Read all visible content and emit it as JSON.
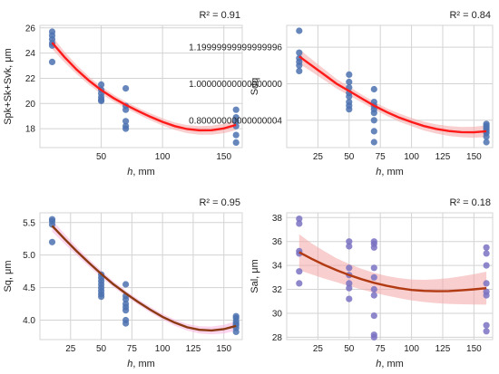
{
  "figure": {
    "background": "#ffffff"
  },
  "chart_data": [
    {
      "type": "scatter",
      "id": "spk",
      "xlabel": "h, mm",
      "ylabel": "Spk+Sk+Svk, μm",
      "annotation": "R² = 0.91",
      "xlim": [
        0,
        165
      ],
      "ylim": [
        16.5,
        26.2
      ],
      "xticks": [
        50,
        100,
        150
      ],
      "yticks": [
        18,
        20,
        22,
        24,
        26
      ],
      "grid": true,
      "point_color": "#4c72b0",
      "line_color": "#ff1a1a",
      "band_color": "#f4a6a6",
      "points": [
        [
          10,
          25.7
        ],
        [
          10,
          25.4
        ],
        [
          10,
          25.1
        ],
        [
          10,
          24.8
        ],
        [
          10,
          24.6
        ],
        [
          10,
          23.3
        ],
        [
          50,
          21.5
        ],
        [
          50,
          21.1
        ],
        [
          50,
          20.8
        ],
        [
          50,
          20.5
        ],
        [
          50,
          20.3
        ],
        [
          50,
          20.2
        ],
        [
          70,
          21.2
        ],
        [
          70,
          19.8
        ],
        [
          70,
          19.5
        ],
        [
          70,
          18.6
        ],
        [
          70,
          18.2
        ],
        [
          70,
          18.0
        ],
        [
          160,
          19.5
        ],
        [
          160,
          18.9
        ],
        [
          160,
          18.6
        ],
        [
          160,
          18.2
        ],
        [
          160,
          17.5
        ],
        [
          160,
          16.9
        ]
      ],
      "fit": [
        [
          10,
          24.83
        ],
        [
          20,
          23.69
        ],
        [
          30,
          22.69
        ],
        [
          40,
          21.81
        ],
        [
          50,
          21.06
        ],
        [
          60,
          20.43
        ],
        [
          70,
          19.89
        ],
        [
          80,
          19.4
        ],
        [
          90,
          18.95
        ],
        [
          100,
          18.54
        ],
        [
          110,
          18.2
        ],
        [
          120,
          17.97
        ],
        [
          130,
          17.87
        ],
        [
          140,
          17.88
        ],
        [
          150,
          18.02
        ],
        [
          160,
          18.3
        ]
      ],
      "band_halfwidth": [
        0.5,
        0.42,
        0.36,
        0.32,
        0.29,
        0.27,
        0.26,
        0.26,
        0.27,
        0.29,
        0.3,
        0.32,
        0.34,
        0.36,
        0.38,
        0.41
      ]
    },
    {
      "type": "scatter",
      "id": "sdq",
      "xlabel": "h, mm",
      "ylabel": "Sdq",
      "annotation": "R² = 0.84",
      "xlim": [
        0,
        165
      ],
      "ylim": [
        0.65,
        1.32
      ],
      "xticks": [
        25,
        50,
        75,
        100,
        125,
        150
      ],
      "yticks": [
        0.8,
        1.0,
        1.2
      ],
      "grid": true,
      "point_color": "#4c72b0",
      "line_color": "#ff1a1a",
      "band_color": "#f4a6a6",
      "points": [
        [
          10,
          1.29
        ],
        [
          10,
          1.17
        ],
        [
          10,
          1.14
        ],
        [
          10,
          1.12
        ],
        [
          10,
          1.1
        ],
        [
          10,
          1.07
        ],
        [
          50,
          1.05
        ],
        [
          50,
          1.01
        ],
        [
          50,
          0.98
        ],
        [
          50,
          0.95
        ],
        [
          50,
          0.93
        ],
        [
          50,
          0.9
        ],
        [
          50,
          0.88
        ],
        [
          50,
          0.86
        ],
        [
          70,
          0.97
        ],
        [
          70,
          0.9
        ],
        [
          70,
          0.88
        ],
        [
          70,
          0.86
        ],
        [
          70,
          0.84
        ],
        [
          70,
          0.8
        ],
        [
          70,
          0.74
        ],
        [
          70,
          0.68
        ],
        [
          160,
          0.78
        ],
        [
          160,
          0.77
        ],
        [
          160,
          0.76
        ],
        [
          160,
          0.75
        ],
        [
          160,
          0.74
        ],
        [
          160,
          0.73
        ],
        [
          160,
          0.71
        ],
        [
          160,
          0.68
        ]
      ],
      "fit": [
        [
          10,
          1.15
        ],
        [
          20,
          1.1
        ],
        [
          30,
          1.05
        ],
        [
          40,
          1.0
        ],
        [
          50,
          0.96
        ],
        [
          60,
          0.92
        ],
        [
          70,
          0.88
        ],
        [
          80,
          0.845
        ],
        [
          90,
          0.815
        ],
        [
          100,
          0.79
        ],
        [
          110,
          0.768
        ],
        [
          120,
          0.752
        ],
        [
          130,
          0.741
        ],
        [
          140,
          0.735
        ],
        [
          150,
          0.734
        ],
        [
          160,
          0.74
        ]
      ],
      "band_halfwidth": [
        0.04,
        0.034,
        0.03,
        0.026,
        0.024,
        0.022,
        0.021,
        0.021,
        0.022,
        0.023,
        0.024,
        0.025,
        0.027,
        0.028,
        0.03,
        0.032
      ]
    },
    {
      "type": "scatter",
      "id": "sq",
      "xlabel": "h, mm",
      "ylabel": "Sq, μm",
      "annotation": "R² = 0.95",
      "xlim": [
        0,
        165
      ],
      "ylim": [
        3.7,
        5.65
      ],
      "xticks": [
        25,
        50,
        75,
        100,
        125,
        150
      ],
      "yticks": [
        4.0,
        4.5,
        5.0,
        5.5
      ],
      "grid": true,
      "point_color": "#4c72b0",
      "line_color": "#8b3a12",
      "band_color": "#f5b3de",
      "points": [
        [
          10,
          5.55
        ],
        [
          10,
          5.52
        ],
        [
          10,
          5.47
        ],
        [
          10,
          5.2
        ],
        [
          50,
          4.7
        ],
        [
          50,
          4.65
        ],
        [
          50,
          4.6
        ],
        [
          50,
          4.55
        ],
        [
          50,
          4.5
        ],
        [
          50,
          4.45
        ],
        [
          50,
          4.4
        ],
        [
          50,
          4.36
        ],
        [
          70,
          4.55
        ],
        [
          70,
          4.37
        ],
        [
          70,
          4.32
        ],
        [
          70,
          4.25
        ],
        [
          70,
          4.2
        ],
        [
          70,
          4.15
        ],
        [
          70,
          4.0
        ],
        [
          70,
          3.95
        ],
        [
          160,
          4.06
        ],
        [
          160,
          4.03
        ],
        [
          160,
          3.98
        ],
        [
          160,
          3.95
        ],
        [
          160,
          3.92
        ],
        [
          160,
          3.88
        ],
        [
          160,
          3.82
        ]
      ],
      "fit": [
        [
          10,
          5.45
        ],
        [
          20,
          5.25
        ],
        [
          30,
          5.06
        ],
        [
          40,
          4.88
        ],
        [
          50,
          4.71
        ],
        [
          60,
          4.55
        ],
        [
          70,
          4.41
        ],
        [
          80,
          4.28
        ],
        [
          90,
          4.16
        ],
        [
          100,
          4.05
        ],
        [
          110,
          3.96
        ],
        [
          120,
          3.89
        ],
        [
          130,
          3.85
        ],
        [
          140,
          3.84
        ],
        [
          150,
          3.86
        ],
        [
          160,
          3.91
        ]
      ],
      "band_halfwidth": [
        0.09,
        0.075,
        0.065,
        0.057,
        0.05,
        0.046,
        0.043,
        0.042,
        0.043,
        0.045,
        0.048,
        0.051,
        0.055,
        0.06,
        0.066,
        0.073
      ]
    },
    {
      "type": "scatter",
      "id": "sal",
      "xlabel": "h, mm",
      "ylabel": "Sal, μm",
      "annotation": "R² = 0.18",
      "xlim": [
        0,
        165
      ],
      "ylim": [
        27.8,
        38.4
      ],
      "xticks": [
        25,
        50,
        75,
        100,
        125,
        150
      ],
      "yticks": [
        28,
        30,
        32,
        34,
        36,
        38
      ],
      "grid": true,
      "point_color": "#7a72c2",
      "line_color": "#b23a12",
      "band_color": "#f4a6a6",
      "points": [
        [
          10,
          37.9
        ],
        [
          10,
          37.5
        ],
        [
          10,
          35.2
        ],
        [
          10,
          35.0
        ],
        [
          10,
          33.5
        ],
        [
          10,
          32.5
        ],
        [
          50,
          36.0
        ],
        [
          50,
          35.6
        ],
        [
          50,
          33.8
        ],
        [
          50,
          33.2
        ],
        [
          50,
          32.5
        ],
        [
          50,
          32.1
        ],
        [
          50,
          31.2
        ],
        [
          70,
          36.0
        ],
        [
          70,
          35.8
        ],
        [
          70,
          35.5
        ],
        [
          70,
          33.8
        ],
        [
          70,
          33.0
        ],
        [
          70,
          32.0
        ],
        [
          70,
          31.5
        ],
        [
          70,
          29.8
        ],
        [
          70,
          28.2
        ],
        [
          70,
          28.0
        ],
        [
          160,
          35.5
        ],
        [
          160,
          35.0
        ],
        [
          160,
          34.0
        ],
        [
          160,
          32.5
        ],
        [
          160,
          31.8
        ],
        [
          160,
          31.5
        ],
        [
          160,
          29.0
        ],
        [
          160,
          28.5
        ]
      ],
      "fit": [
        [
          10,
          35.1
        ],
        [
          20,
          34.55
        ],
        [
          30,
          34.05
        ],
        [
          40,
          33.6
        ],
        [
          50,
          33.2
        ],
        [
          60,
          32.85
        ],
        [
          70,
          32.55
        ],
        [
          80,
          32.3
        ],
        [
          90,
          32.1
        ],
        [
          100,
          31.95
        ],
        [
          110,
          31.87
        ],
        [
          120,
          31.84
        ],
        [
          130,
          31.86
        ],
        [
          140,
          31.92
        ],
        [
          150,
          32.0
        ],
        [
          160,
          32.1
        ]
      ],
      "band_halfwidth": [
        1.5,
        1.3,
        1.15,
        1.0,
        0.92,
        0.86,
        0.83,
        0.82,
        0.84,
        0.88,
        0.93,
        1.0,
        1.08,
        1.17,
        1.27,
        1.38
      ]
    }
  ]
}
